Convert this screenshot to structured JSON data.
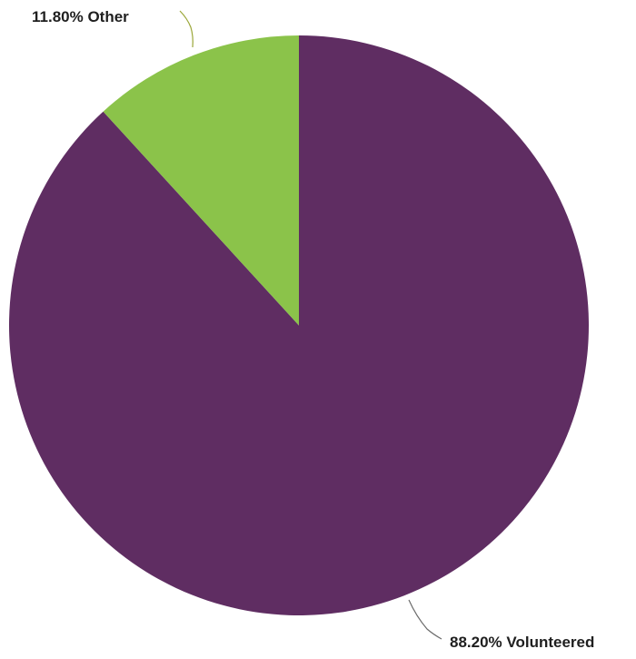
{
  "chart_data": {
    "type": "pie",
    "title": "",
    "start_angle_deg": 0,
    "direction": "counterclockwise",
    "slices": [
      {
        "label": "Volunteered",
        "value": 88.2,
        "display": "88.20% Volunteered",
        "color": "#5f2d62"
      },
      {
        "label": "Other",
        "value": 11.8,
        "display": "11.80% Other",
        "color": "#8bc34a"
      }
    ],
    "leader_line_color": "#9aa637"
  }
}
